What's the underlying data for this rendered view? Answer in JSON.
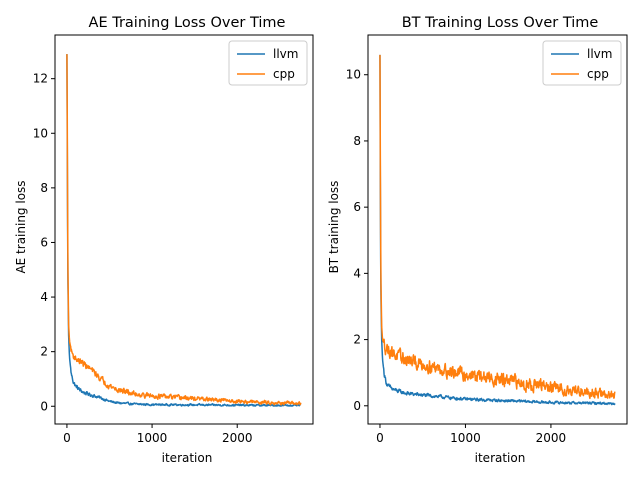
{
  "chart_data": [
    {
      "type": "line",
      "title": "AE Training Loss Over Time",
      "xlabel": "iteration",
      "ylabel": "AE training loss",
      "xlim": [
        -140,
        2890
      ],
      "ylim": [
        -0.65,
        13.6
      ],
      "xticks": [
        0,
        1000,
        2000
      ],
      "yticks": [
        0,
        2,
        4,
        6,
        8,
        10,
        12
      ],
      "legend": "top-right",
      "series": [
        {
          "name": "llvm",
          "color": "#1f77b4",
          "noise": 0.06,
          "x": [
            0,
            5,
            10,
            20,
            30,
            50,
            75,
            100,
            150,
            200,
            300,
            400,
            500,
            600,
            800,
            1000,
            1500,
            2000,
            2500,
            2750
          ],
          "y": [
            12.9,
            9.0,
            5.0,
            2.6,
            1.8,
            1.2,
            0.9,
            0.75,
            0.6,
            0.5,
            0.4,
            0.3,
            0.18,
            0.12,
            0.08,
            0.06,
            0.05,
            0.04,
            0.03,
            0.03
          ]
        },
        {
          "name": "cpp",
          "color": "#ff7f0e",
          "noise": 0.09,
          "x": [
            0,
            5,
            10,
            20,
            30,
            50,
            75,
            100,
            150,
            200,
            300,
            400,
            500,
            600,
            800,
            1000,
            1500,
            2000,
            2500,
            2750
          ],
          "y": [
            12.9,
            10.0,
            5.5,
            3.0,
            2.4,
            2.05,
            1.85,
            1.75,
            1.65,
            1.55,
            1.3,
            1.0,
            0.75,
            0.6,
            0.45,
            0.38,
            0.28,
            0.18,
            0.12,
            0.1
          ]
        }
      ]
    },
    {
      "type": "line",
      "title": "BT Training Loss Over Time",
      "xlabel": "iteration",
      "ylabel": "BT training loss",
      "xlim": [
        -140,
        2890
      ],
      "ylim": [
        -0.55,
        11.2
      ],
      "xticks": [
        0,
        1000,
        2000
      ],
      "yticks": [
        0,
        2,
        4,
        6,
        8,
        10
      ],
      "legend": "top-right",
      "series": [
        {
          "name": "llvm",
          "color": "#1f77b4",
          "noise": 0.06,
          "x": [
            0,
            5,
            10,
            20,
            30,
            50,
            75,
            100,
            150,
            200,
            300,
            400,
            600,
            800,
            1000,
            1500,
            2000,
            2500,
            2750
          ],
          "y": [
            10.6,
            6.0,
            3.5,
            2.0,
            1.4,
            0.95,
            0.7,
            0.58,
            0.5,
            0.45,
            0.38,
            0.35,
            0.3,
            0.25,
            0.2,
            0.15,
            0.1,
            0.08,
            0.07
          ]
        },
        {
          "name": "cpp",
          "color": "#ff7f0e",
          "noise": 0.16,
          "x": [
            0,
            5,
            10,
            20,
            30,
            50,
            75,
            100,
            150,
            200,
            300,
            400,
            600,
            800,
            1000,
            1500,
            2000,
            2500,
            2750
          ],
          "y": [
            10.6,
            7.0,
            4.0,
            2.4,
            2.0,
            1.85,
            1.75,
            1.7,
            1.6,
            1.5,
            1.4,
            1.3,
            1.2,
            1.05,
            0.95,
            0.75,
            0.55,
            0.4,
            0.3
          ]
        }
      ]
    }
  ]
}
